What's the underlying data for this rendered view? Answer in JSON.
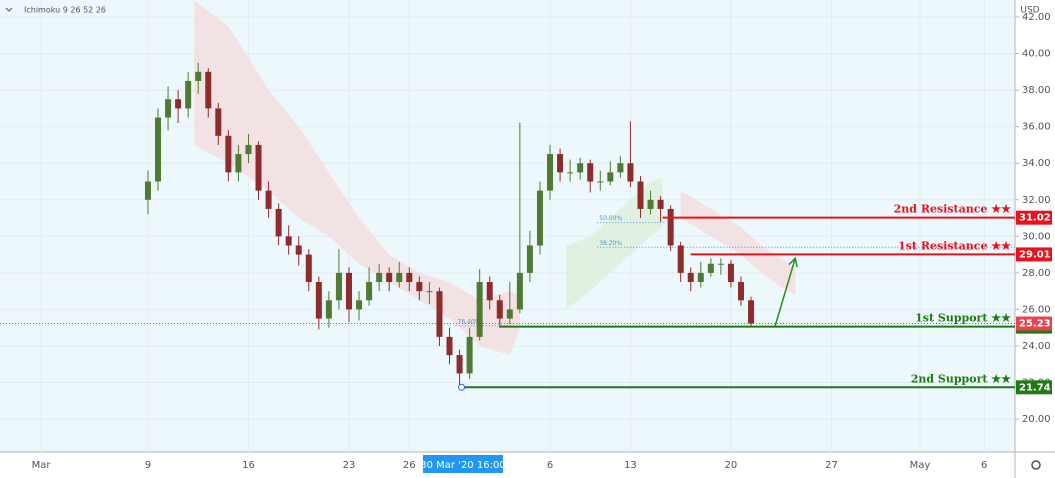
{
  "chart_data": {
    "type": "candlestick",
    "indicator": "Ichimoku 9 26 52 26",
    "currency": "USD",
    "background": "#edf8fd",
    "xlim": [
      -2.36,
      48.13
    ],
    "ylim": [
      18.2,
      42.93
    ],
    "grid": true,
    "xticks": [
      {
        "value": -0.32,
        "label": "Mar"
      },
      {
        "value": 5,
        "label": "9"
      },
      {
        "value": 10,
        "label": "16"
      },
      {
        "value": 15,
        "label": "23"
      },
      {
        "value": 18,
        "label": "26"
      },
      {
        "value": 25,
        "label": "6"
      },
      {
        "value": 29,
        "label": "13"
      },
      {
        "value": 34,
        "label": "20"
      },
      {
        "value": 39,
        "label": "27"
      },
      {
        "value": 43.4,
        "label": "May"
      },
      {
        "value": 46.6,
        "label": "6"
      }
    ],
    "crosshair_x": {
      "value": 20.67,
      "label": "30 Mar '20  16:00"
    },
    "yticks": [
      {
        "value": 42,
        "label": "42.00"
      },
      {
        "value": 40,
        "label": "40.00"
      },
      {
        "value": 38,
        "label": "38.00"
      },
      {
        "value": 36,
        "label": "36.00"
      },
      {
        "value": 34,
        "label": "34.00"
      },
      {
        "value": 32,
        "label": "32.00"
      },
      {
        "value": 30,
        "label": "30.00"
      },
      {
        "value": 28,
        "label": "28.00"
      },
      {
        "value": 26,
        "label": "26.00"
      },
      {
        "value": 24,
        "label": "24.00"
      },
      {
        "value": 22,
        "label": "22.00"
      },
      {
        "value": 20,
        "label": "20.00"
      }
    ],
    "up_color": "#4f7a33",
    "down_color": "#8e2b2b",
    "x": [
      5,
      5.5,
      6,
      6.5,
      7,
      7.5,
      8,
      8.5,
      9,
      9.5,
      10,
      10.5,
      11,
      11.5,
      12,
      12.5,
      13,
      13.5,
      14,
      14.5,
      15,
      15.5,
      16,
      16.5,
      17,
      17.5,
      18,
      18.5,
      19,
      19.5,
      20,
      20.5,
      21,
      21.5,
      22,
      22.5,
      23,
      23.5,
      24,
      24.5,
      25,
      25.5,
      26,
      26.5,
      27,
      27.5,
      28,
      28.5,
      29,
      29.5,
      30,
      30.5,
      31,
      31.5,
      32,
      32.5,
      33,
      33.5,
      34,
      34.5,
      35
    ],
    "open": [
      32,
      33,
      36.5,
      37.5,
      37,
      38.5,
      39,
      37,
      35.5,
      33.5,
      34.5,
      35,
      32.5,
      31.5,
      30,
      29.5,
      29,
      27.5,
      25.5,
      26.5,
      28,
      26,
      26.5,
      27.5,
      28,
      27.5,
      28,
      27.5,
      27,
      27,
      24.5,
      23.5,
      22.5,
      24.5,
      27.5,
      26.5,
      25.5,
      26,
      28,
      29.5,
      32.5,
      34.5,
      33.5,
      33.5,
      34,
      33,
      33,
      33.5,
      34,
      33,
      31.5,
      32,
      31.5,
      29.5,
      28,
      27.5,
      28,
      28.5,
      28.5,
      27.5,
      26.5
    ],
    "high": [
      33.6,
      37,
      38.2,
      38,
      39,
      39.5,
      39.2,
      37.3,
      35.8,
      35,
      35.6,
      35.2,
      33,
      31.8,
      30.6,
      30,
      29.3,
      27.8,
      27,
      29.3,
      28.3,
      27,
      28.3,
      28.5,
      28.3,
      28.6,
      28.3,
      27.8,
      27.5,
      27.2,
      25,
      23.8,
      25,
      28.2,
      27.8,
      26.8,
      27.5,
      36.2,
      30.3,
      33,
      35,
      34.8,
      34.2,
      34.3,
      34.2,
      33.6,
      34.1,
      34.4,
      36.3,
      33.3,
      32.5,
      32.2,
      31.7,
      29.7,
      28.3,
      28.6,
      28.8,
      28.8,
      28.7,
      27.8,
      26.7
    ],
    "low": [
      31.2,
      32.5,
      35.8,
      36.2,
      36.5,
      37.8,
      36.5,
      35,
      33,
      33,
      34,
      32,
      31,
      29.5,
      29,
      28.4,
      27,
      24.9,
      25,
      26,
      25.3,
      25.4,
      26.2,
      27,
      27,
      27.2,
      27,
      26.5,
      26.3,
      24,
      23,
      21.74,
      22.2,
      24.3,
      26,
      25,
      25.2,
      25.8,
      27.5,
      29,
      32,
      33,
      33,
      33.1,
      32.4,
      32.5,
      32.8,
      33.2,
      32.7,
      31,
      31.2,
      30.8,
      29.2,
      27.5,
      27,
      27.2,
      27.8,
      27.9,
      27.2,
      26.2,
      25.1
    ],
    "close": [
      33,
      36.5,
      37.5,
      37,
      38.5,
      39,
      37,
      35.5,
      33.5,
      34.5,
      35,
      32.5,
      31.5,
      30,
      29.5,
      29,
      27.5,
      25.5,
      26.5,
      28,
      26,
      26.5,
      27.5,
      28,
      27.5,
      28,
      27.5,
      27,
      27,
      24.5,
      23.5,
      22.5,
      24.5,
      27.5,
      26.5,
      25.5,
      26,
      28,
      29.5,
      32.5,
      34.5,
      33.5,
      33.5,
      34,
      33,
      33,
      33.5,
      34,
      33,
      31.5,
      32,
      31.5,
      29.5,
      28,
      27.5,
      28,
      28.5,
      28.5,
      27.5,
      26.5,
      25.23
    ],
    "cloud": [
      {
        "color": "#f2dede",
        "x": [
          7.3,
          9,
          11,
          12.5,
          14,
          15.5,
          17,
          18.5,
          20,
          21.5,
          23,
          23.5
        ],
        "upper": [
          42.9,
          41.5,
          38,
          36,
          33.5,
          31,
          29,
          28,
          27.5,
          26.5,
          27,
          26.8
        ],
        "lower": [
          35,
          34,
          32.5,
          31,
          30,
          28.5,
          27.5,
          26.5,
          25.5,
          24,
          23.5,
          25
        ]
      },
      {
        "color": "#dcf1dc",
        "x": [
          25.8,
          27,
          28,
          29,
          30,
          30.6
        ],
        "upper": [
          29.5,
          30,
          31,
          32,
          33,
          33.2
        ],
        "lower": [
          26,
          27,
          28,
          29,
          30,
          30.5
        ]
      },
      {
        "color": "#f2dede",
        "x": [
          31.5,
          33,
          34.5,
          35.5,
          36.5,
          37.2
        ],
        "upper": [
          32.5,
          31.5,
          30.5,
          29.5,
          28.8,
          28.2
        ],
        "lower": [
          31,
          30,
          29,
          28,
          27.2,
          26.8
        ]
      }
    ],
    "fib": [
      {
        "label": "50.00%",
        "value": 30.75,
        "start": 27.35,
        "end": 30.7
      },
      {
        "label": "38.20%",
        "value": 29.4,
        "start": 27.35,
        "end": 48.13
      },
      {
        "label": "76.40%",
        "value": 25.1,
        "start": 20.3,
        "end": 23
      }
    ],
    "levels": [
      {
        "label": "2nd Resistance ★★",
        "value": 31.02,
        "start": 30.6,
        "color": "#e8121d"
      },
      {
        "label": "1st Resistance ★★",
        "value": 29.01,
        "start": 32,
        "color": "#e8121d"
      },
      {
        "label": "1st Support ★★",
        "value": 25.06,
        "start": 22.5,
        "color": "#1f7a12"
      },
      {
        "label": "2nd Support ★★",
        "value": 21.74,
        "start": 20.6,
        "color": "#1f7a12"
      }
    ],
    "last_price": {
      "value": 25.23,
      "color": "#e8444e"
    },
    "low_marker": {
      "x": 20.6,
      "value": 21.74
    },
    "arrow": {
      "x": [
        36.2,
        37.2
      ],
      "values": [
        25.1,
        28.8
      ],
      "color": "#2e8b1e"
    }
  }
}
